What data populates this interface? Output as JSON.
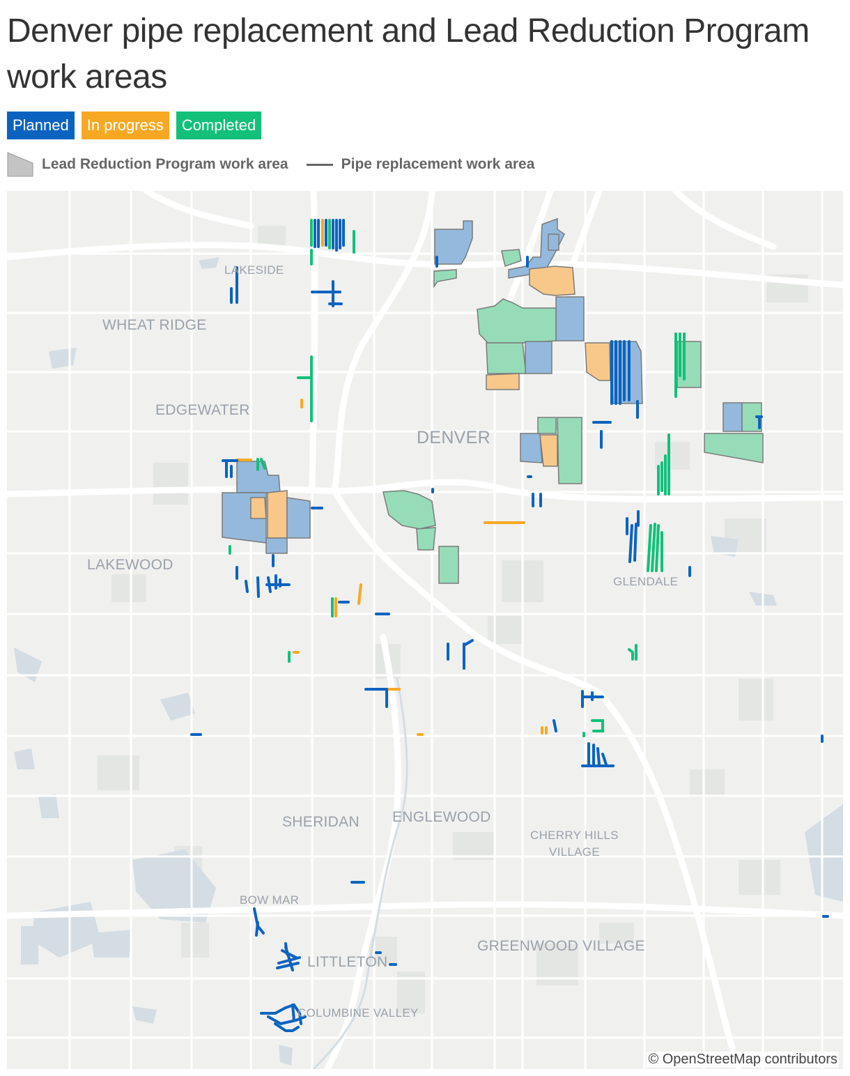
{
  "title": "Denver pipe replacement and Lead Reduction Program work areas",
  "status_chips": [
    {
      "label": "Planned",
      "color": "#0b63c0"
    },
    {
      "label": "In progress",
      "color": "#f7a823"
    },
    {
      "label": "Completed",
      "color": "#12c07a"
    }
  ],
  "legend": {
    "polygon_label": "Lead Reduction Program work area",
    "line_label": "Pipe replacement work area"
  },
  "places": {
    "lakeside": "LAKESIDE",
    "wheat_ridge": "WHEAT RIDGE",
    "edgewater": "EDGEWATER",
    "denver": "DENVER",
    "lakewood": "LAKEWOOD",
    "glendale": "GLENDALE",
    "sheridan": "SHERIDAN",
    "englewood": "ENGLEWOOD",
    "cherry_hills_1": "CHERRY HILLS",
    "cherry_hills_2": "VILLAGE",
    "bow_mar": "BOW MAR",
    "littleton": "LITTLETON",
    "greenwood_village": "GREENWOOD VILLAGE",
    "columbine_valley": "COLUMBINE VALLEY"
  },
  "attribution": "© OpenStreetMap contributors",
  "colors": {
    "planned": "#0b63c0",
    "in_progress": "#f7a823",
    "completed": "#12c07a",
    "planned_fill": "#94b9dc",
    "in_progress_fill": "#f8c88a",
    "completed_fill": "#96dcb8",
    "map_bg": "#f0f0ef",
    "road": "#ffffff",
    "water": "#d3dde3"
  }
}
